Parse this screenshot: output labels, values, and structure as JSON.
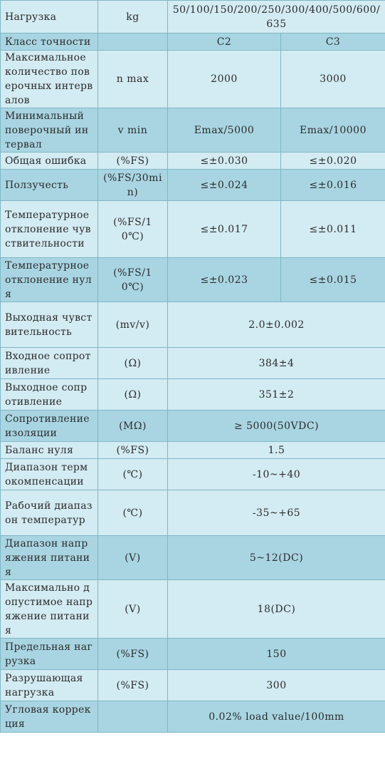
{
  "rows": [
    {
      "param": "Нагрузка",
      "unit": "kg",
      "values": [
        "50/100/150/200/250/300/400/500/600/635"
      ],
      "shade": "light"
    },
    {
      "param": "Класс точности",
      "unit": "",
      "values": [
        "C2",
        "C3"
      ],
      "shade": "dark"
    },
    {
      "param": "Максимальное количество поверочных интервалов",
      "unit": "n max",
      "values": [
        "2000",
        "3000"
      ],
      "shade": "light"
    },
    {
      "param": "Минимальный поверочный интервал",
      "unit": "v min",
      "values": [
        "Emax/5000",
        "Emax/10000"
      ],
      "shade": "dark"
    },
    {
      "param": "Общая ошибка",
      "unit": "(%FS)",
      "values": [
        "≤±0.030",
        "≤±0.020"
      ],
      "shade": "light"
    },
    {
      "param": "Ползучесть",
      "unit": "(%FS/30min)",
      "values": [
        "≤±0.024",
        "≤±0.016"
      ],
      "shade": "dark"
    },
    {
      "param": "Температурное отклонение чувствительности",
      "unit": "(%FS/10℃)",
      "values": [
        "≤±0.017",
        "≤±0.011"
      ],
      "shade": "light"
    },
    {
      "param": "Температурное отклонение нуля",
      "unit": "(%FS/10℃)",
      "values": [
        "≤±0.023",
        "≤±0.015"
      ],
      "shade": "dark"
    },
    {
      "param": "Выходная чувствительность",
      "unit": "(mv/v)",
      "values": [
        "2.0±0.002"
      ],
      "shade": "light"
    },
    {
      "param": "Входное сопротивление",
      "unit": "(Ω)",
      "values": [
        "384±4"
      ],
      "shade": "light"
    },
    {
      "param": "Выходное сопротивление",
      "unit": "(Ω)",
      "values": [
        "351±2"
      ],
      "shade": "light"
    },
    {
      "param": "Сопротивление изоляции",
      "unit": "(MΩ)",
      "values": [
        "≥ 5000(50VDC)"
      ],
      "shade": "dark"
    },
    {
      "param": "Баланс нуля",
      "unit": "(%FS)",
      "values": [
        "1.5"
      ],
      "shade": "light"
    },
    {
      "param": "Диапазон термокомпенсации",
      "unit": "(℃)",
      "values": [
        "-10~+40"
      ],
      "shade": "light"
    },
    {
      "param": "Рабочий диапазон температур",
      "unit": "(℃)",
      "values": [
        "-35~+65"
      ],
      "shade": "light"
    },
    {
      "param": "Диапазон напряжения питания",
      "unit": "(V)",
      "values": [
        "5~12(DC)"
      ],
      "shade": "dark"
    },
    {
      "param": "Максимально допустимое напряжение питания",
      "unit": "(V)",
      "values": [
        "18(DC)"
      ],
      "shade": "light"
    },
    {
      "param": "Предельная нагрузка",
      "unit": "(%FS)",
      "values": [
        "150"
      ],
      "shade": "dark"
    },
    {
      "param": "Разрушающая нагрузка",
      "unit": "(%FS)",
      "values": [
        "300"
      ],
      "shade": "light"
    },
    {
      "param": "Угловая коррекция",
      "unit": "",
      "values": [
        "0.02% load value/100mm"
      ],
      "shade": "dark"
    }
  ]
}
